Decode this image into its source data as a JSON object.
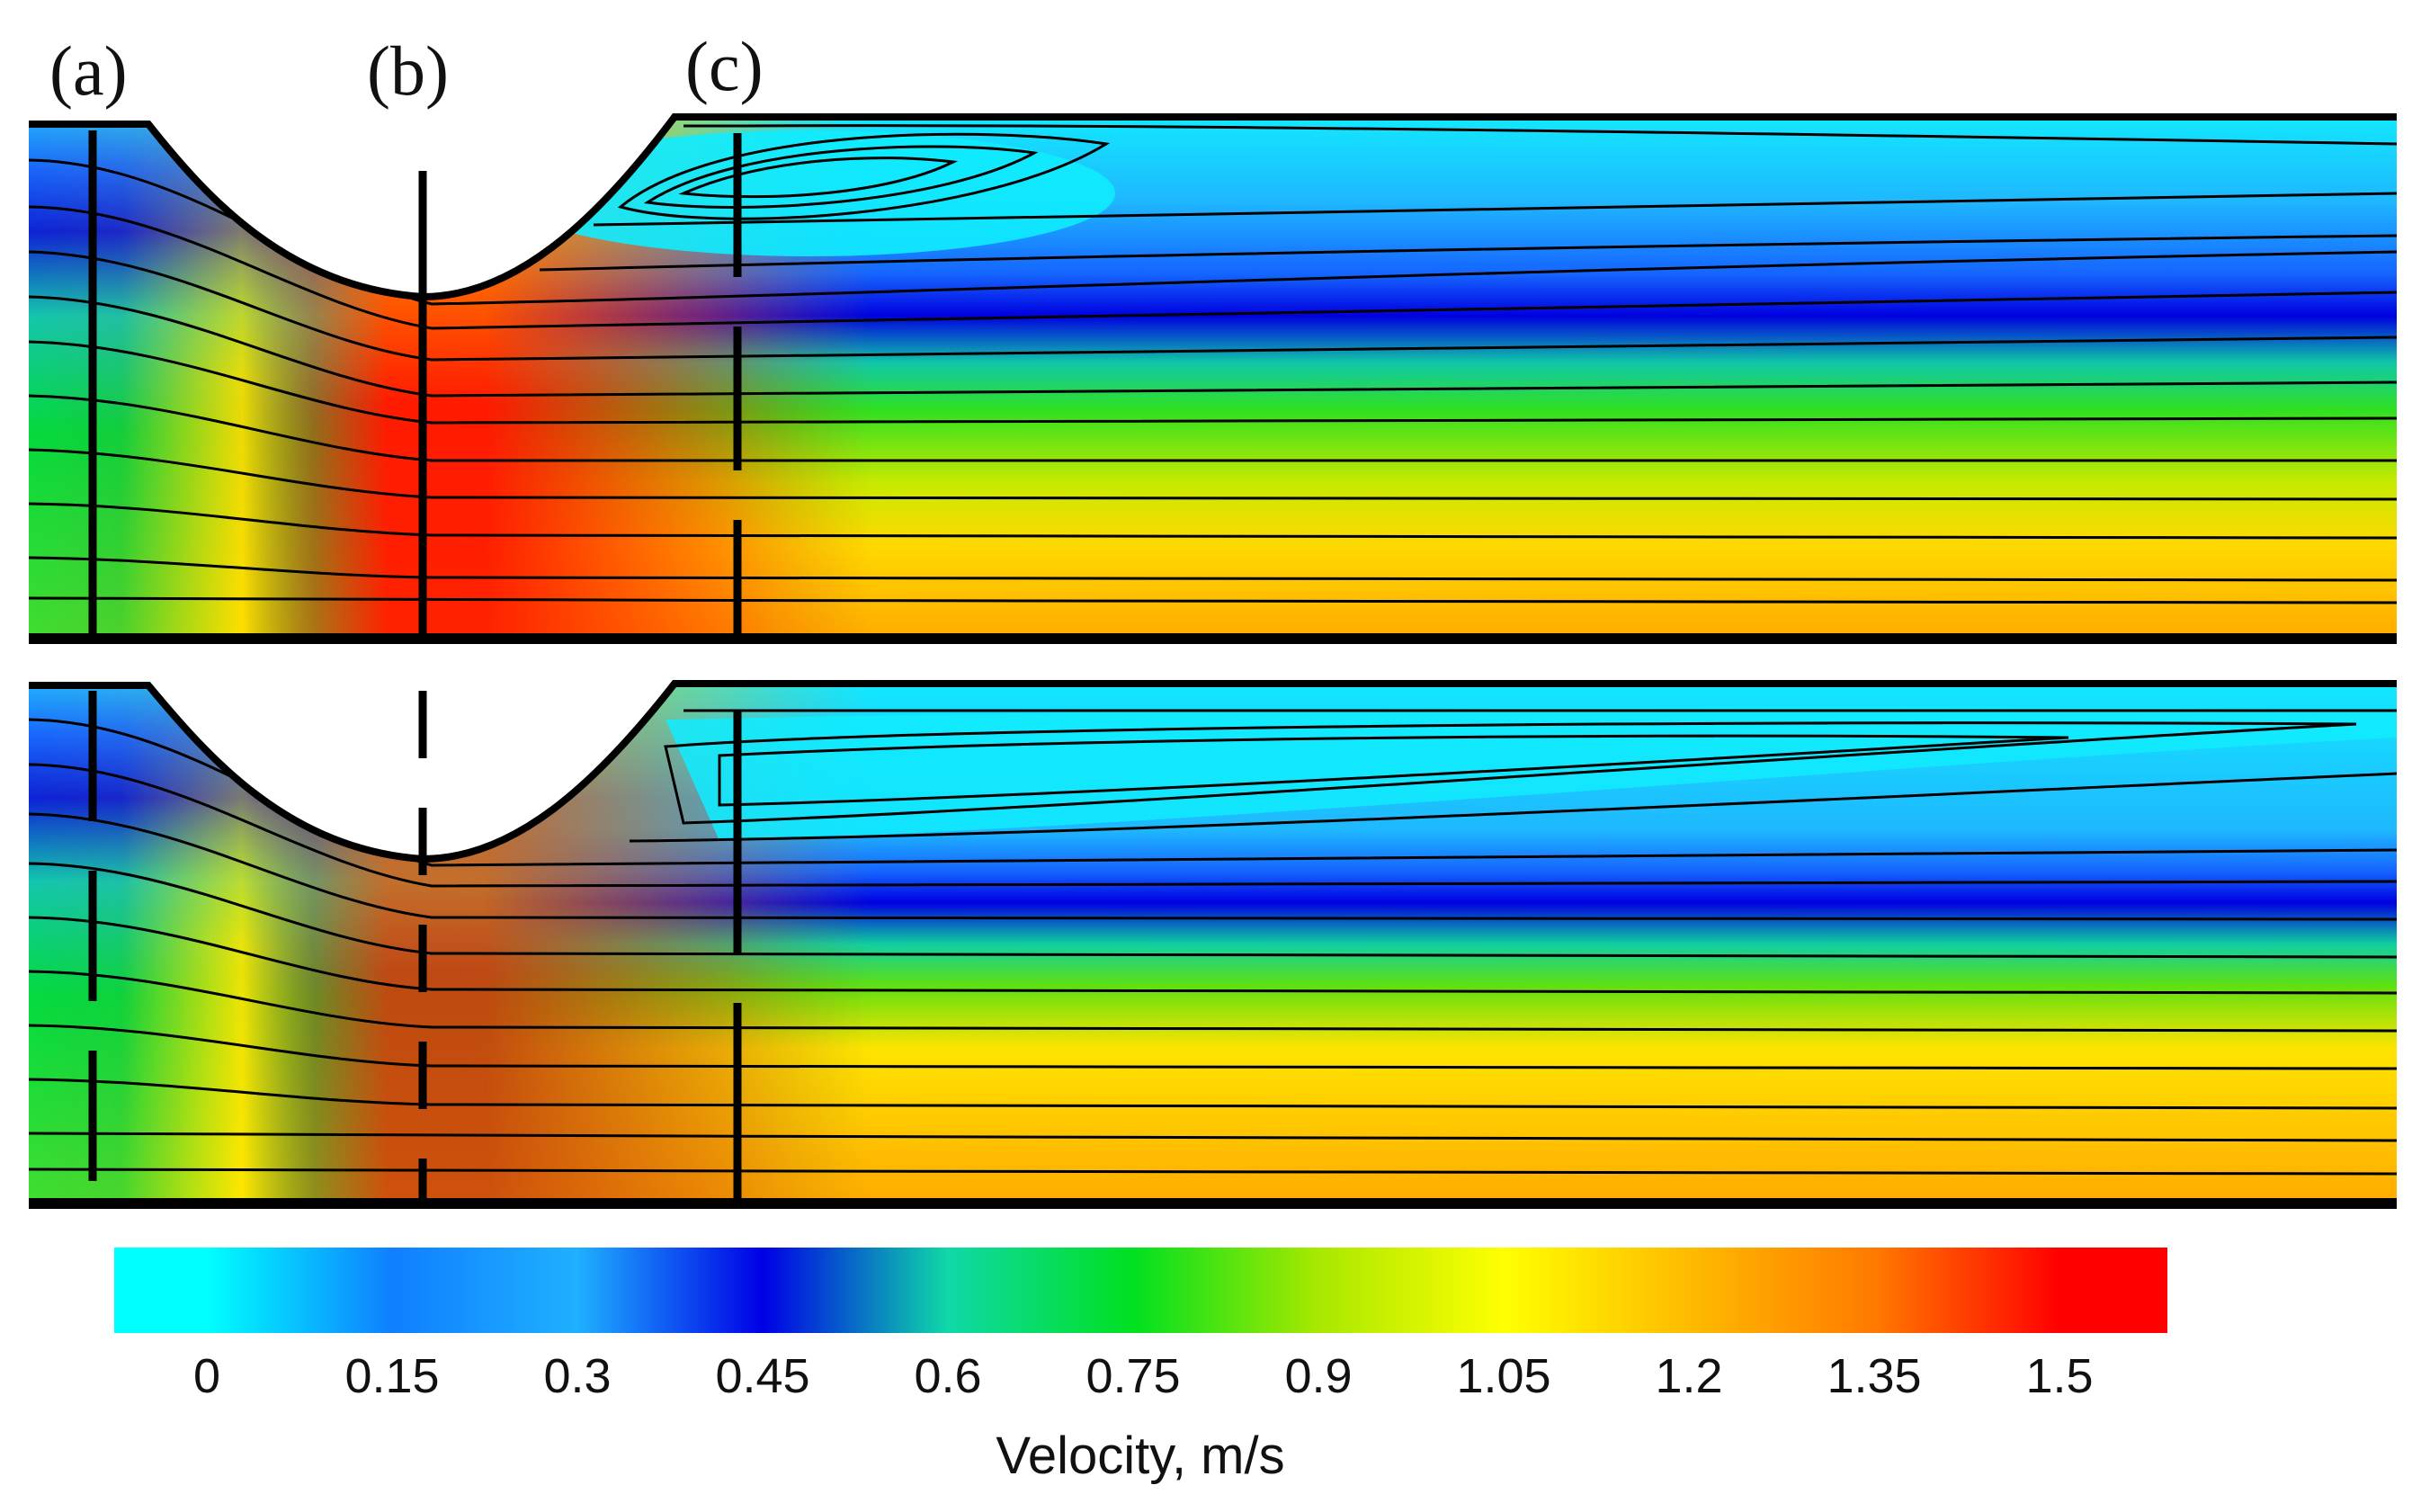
{
  "section_labels": [
    "(a)",
    "(b)",
    "(c)"
  ],
  "colorbar": {
    "title": "Velocity, m/s",
    "ticks": [
      "0",
      "0.15",
      "0.3",
      "0.45",
      "0.6",
      "0.75",
      "0.9",
      "1.05",
      "1.2",
      "1.35",
      "1.5"
    ],
    "stops": [
      {
        "value": 0.0,
        "color": "#00ffff"
      },
      {
        "value": 0.15,
        "color": "#0f7fff"
      },
      {
        "value": 0.3,
        "color": "#1fb0ff"
      },
      {
        "value": 0.45,
        "color": "#0000e6"
      },
      {
        "value": 0.6,
        "color": "#10d8a8"
      },
      {
        "value": 0.75,
        "color": "#00e020"
      },
      {
        "value": 0.9,
        "color": "#a8e800"
      },
      {
        "value": 1.05,
        "color": "#ffff00"
      },
      {
        "value": 1.2,
        "color": "#ffbb00"
      },
      {
        "value": 1.35,
        "color": "#ff7a00"
      },
      {
        "value": 1.5,
        "color": "#ff0000"
      }
    ]
  },
  "panels": [
    {
      "name": "upper",
      "section_lines": [
        "solid",
        "solid",
        "dashed"
      ]
    },
    {
      "name": "lower",
      "section_lines": [
        "dashed",
        "dashed",
        "dashed"
      ]
    }
  ]
}
